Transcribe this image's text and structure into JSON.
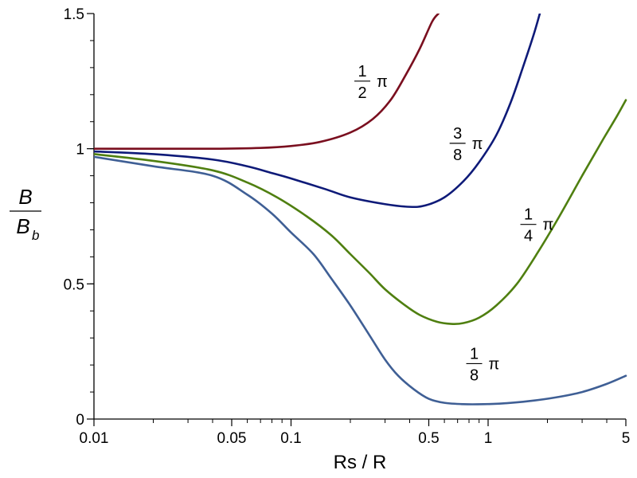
{
  "chart_data": {
    "type": "line",
    "x_scale": "log",
    "xlabel": "Rs / R",
    "ylabel": {
      "numerator": "B",
      "denominator": "B",
      "subscript": "b"
    },
    "xlim": [
      0.01,
      5
    ],
    "ylim": [
      0,
      1.5
    ],
    "x_ticks": [
      {
        "value": 0.01,
        "label": "0.01"
      },
      {
        "value": 0.05,
        "label": "0.05"
      },
      {
        "value": 0.1,
        "label": "0.1"
      },
      {
        "value": 0.5,
        "label": "0.5"
      },
      {
        "value": 1,
        "label": "1"
      },
      {
        "value": 5,
        "label": "5"
      }
    ],
    "y_ticks": [
      {
        "value": 0,
        "label": "0"
      },
      {
        "value": 0.5,
        "label": "0.5"
      },
      {
        "value": 1,
        "label": "1"
      },
      {
        "value": 1.5,
        "label": "1.5"
      }
    ],
    "series": [
      {
        "name": "1/2 π",
        "color": "#7a0f1f",
        "label": {
          "num": "1",
          "den": "2",
          "suffix": "π",
          "at": [
            0.23,
            1.25
          ]
        },
        "points": [
          [
            0.01,
            1.0
          ],
          [
            0.02,
            1.0
          ],
          [
            0.04,
            1.0
          ],
          [
            0.07,
            1.003
          ],
          [
            0.1,
            1.01
          ],
          [
            0.14,
            1.025
          ],
          [
            0.2,
            1.06
          ],
          [
            0.26,
            1.11
          ],
          [
            0.32,
            1.18
          ],
          [
            0.38,
            1.27
          ],
          [
            0.45,
            1.37
          ],
          [
            0.52,
            1.47
          ],
          [
            0.56,
            1.5
          ]
        ]
      },
      {
        "name": "3/8 π",
        "color": "#0e1a78",
        "label": {
          "num": "3",
          "den": "8",
          "suffix": "π",
          "at": [
            0.7,
            1.02
          ]
        },
        "points": [
          [
            0.01,
            0.99
          ],
          [
            0.02,
            0.98
          ],
          [
            0.04,
            0.96
          ],
          [
            0.06,
            0.935
          ],
          [
            0.08,
            0.91
          ],
          [
            0.1,
            0.89
          ],
          [
            0.15,
            0.85
          ],
          [
            0.2,
            0.82
          ],
          [
            0.3,
            0.795
          ],
          [
            0.4,
            0.785
          ],
          [
            0.48,
            0.79
          ],
          [
            0.6,
            0.82
          ],
          [
            0.75,
            0.88
          ],
          [
            0.9,
            0.95
          ],
          [
            1.1,
            1.05
          ],
          [
            1.3,
            1.17
          ],
          [
            1.5,
            1.3
          ],
          [
            1.7,
            1.42
          ],
          [
            1.83,
            1.5
          ]
        ]
      },
      {
        "name": "1/4 π",
        "color": "#4f7f10",
        "label": {
          "num": "1",
          "den": "4",
          "suffix": "π",
          "at": [
            1.6,
            0.72
          ]
        },
        "points": [
          [
            0.01,
            0.98
          ],
          [
            0.02,
            0.955
          ],
          [
            0.04,
            0.92
          ],
          [
            0.06,
            0.875
          ],
          [
            0.085,
            0.82
          ],
          [
            0.12,
            0.75
          ],
          [
            0.16,
            0.68
          ],
          [
            0.2,
            0.61
          ],
          [
            0.25,
            0.54
          ],
          [
            0.3,
            0.48
          ],
          [
            0.38,
            0.42
          ],
          [
            0.45,
            0.385
          ],
          [
            0.55,
            0.36
          ],
          [
            0.65,
            0.352
          ],
          [
            0.75,
            0.355
          ],
          [
            0.9,
            0.375
          ],
          [
            1.1,
            0.42
          ],
          [
            1.4,
            0.5
          ],
          [
            1.8,
            0.62
          ],
          [
            2.3,
            0.75
          ],
          [
            3,
            0.9
          ],
          [
            3.8,
            1.03
          ],
          [
            4.5,
            1.12
          ],
          [
            5,
            1.18
          ]
        ]
      },
      {
        "name": "1/8 π",
        "color": "#3f5f95",
        "label": {
          "num": "1",
          "den": "8",
          "suffix": "π",
          "at": [
            0.85,
            0.205
          ]
        },
        "points": [
          [
            0.01,
            0.97
          ],
          [
            0.02,
            0.935
          ],
          [
            0.04,
            0.9
          ],
          [
            0.06,
            0.83
          ],
          [
            0.08,
            0.76
          ],
          [
            0.1,
            0.69
          ],
          [
            0.13,
            0.61
          ],
          [
            0.16,
            0.52
          ],
          [
            0.2,
            0.42
          ],
          [
            0.25,
            0.31
          ],
          [
            0.3,
            0.22
          ],
          [
            0.35,
            0.16
          ],
          [
            0.42,
            0.11
          ],
          [
            0.5,
            0.075
          ],
          [
            0.6,
            0.06
          ],
          [
            0.75,
            0.055
          ],
          [
            0.95,
            0.055
          ],
          [
            1.2,
            0.058
          ],
          [
            1.6,
            0.066
          ],
          [
            2.2,
            0.08
          ],
          [
            3,
            0.1
          ],
          [
            4,
            0.13
          ],
          [
            5,
            0.16
          ]
        ]
      }
    ]
  }
}
